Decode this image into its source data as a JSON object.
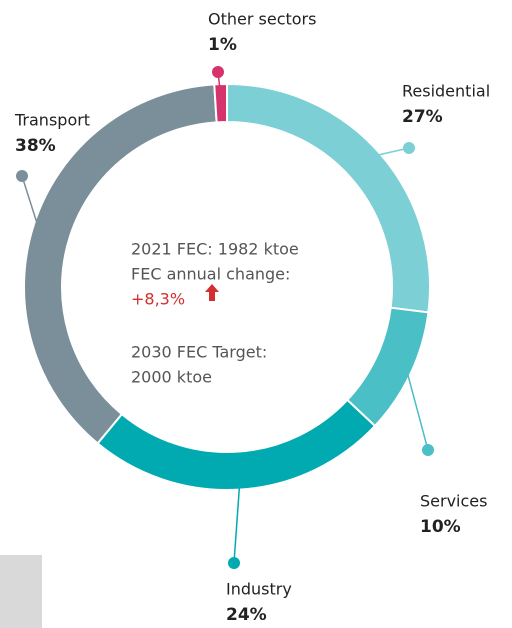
{
  "chart_data": {
    "type": "donut",
    "categories": [
      "Residential",
      "Services",
      "Industry",
      "Transport",
      "Other sectors"
    ],
    "values": [
      27,
      10,
      24,
      38,
      1
    ],
    "value_labels": [
      "27%",
      "10%",
      "24%",
      "38%",
      "1%"
    ],
    "colors": [
      "#7ccfd4",
      "#4bbfc6",
      "#00aab0",
      "#7a8f99",
      "#d6336c"
    ],
    "annotations": [
      "2021 FEC: 1982 ktoe",
      "FEC annual change:",
      "+8,3%",
      "2030 FEC Target:",
      "2000 ktoe"
    ]
  }
}
